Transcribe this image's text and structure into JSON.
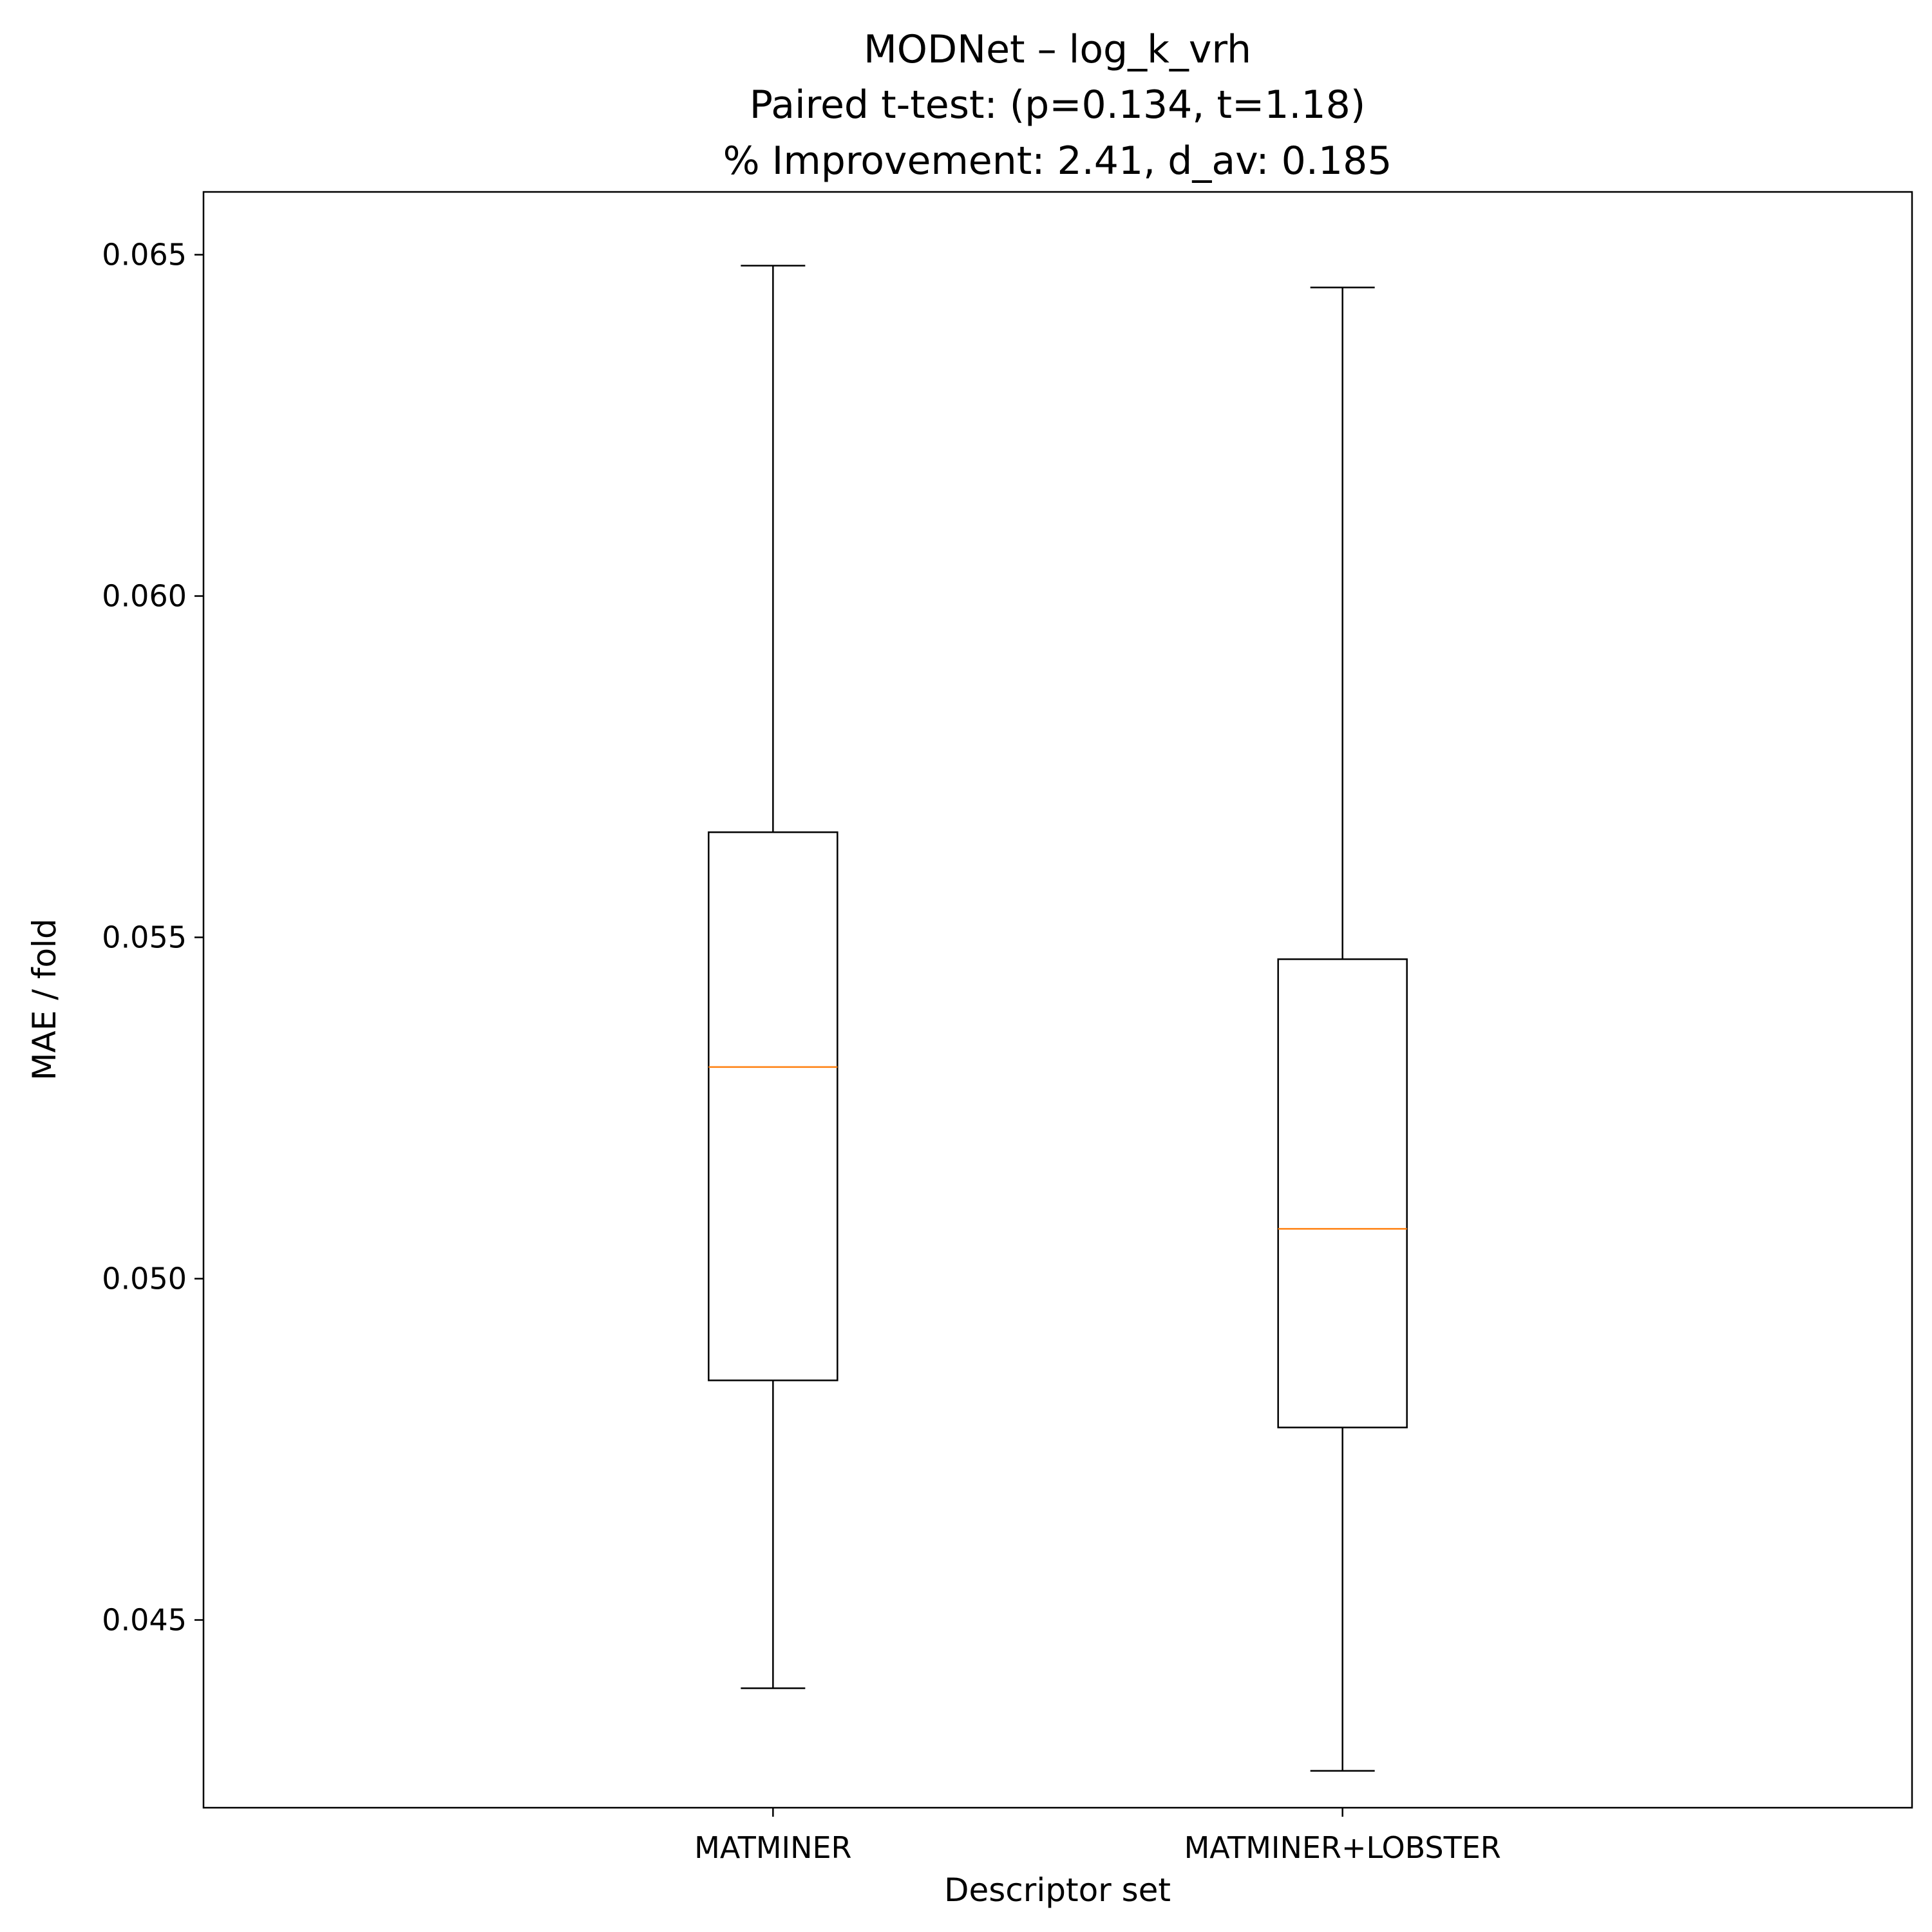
{
  "chart_data": {
    "type": "box",
    "title_lines": [
      "MODNet – log_k_vrh",
      "Paired t-test: (p=0.134, t=1.18)",
      "% Improvement: 2.41, d_av: 0.185"
    ],
    "xlabel": "Descriptor set",
    "ylabel": "MAE / fold",
    "categories": [
      "MATMINER",
      "MATMINER+LOBSTER"
    ],
    "boxes": [
      {
        "category": "MATMINER",
        "whisker_low": 0.044,
        "q1": 0.04851,
        "median": 0.0531,
        "q3": 0.05654,
        "whisker_high": 0.06484
      },
      {
        "category": "MATMINER+LOBSTER",
        "whisker_low": 0.04279,
        "q1": 0.04782,
        "median": 0.05073,
        "q3": 0.05468,
        "whisker_high": 0.06452
      }
    ],
    "yticks": [
      0.045,
      0.05,
      0.055,
      0.06,
      0.065
    ],
    "ytick_labels": [
      "0.045",
      "0.050",
      "0.055",
      "0.060",
      "0.065"
    ],
    "ylim": [
      0.04225,
      0.06592
    ],
    "grid": false,
    "legend": "none",
    "colors": {
      "box": "#000000",
      "median": "#ff7f0e"
    }
  }
}
